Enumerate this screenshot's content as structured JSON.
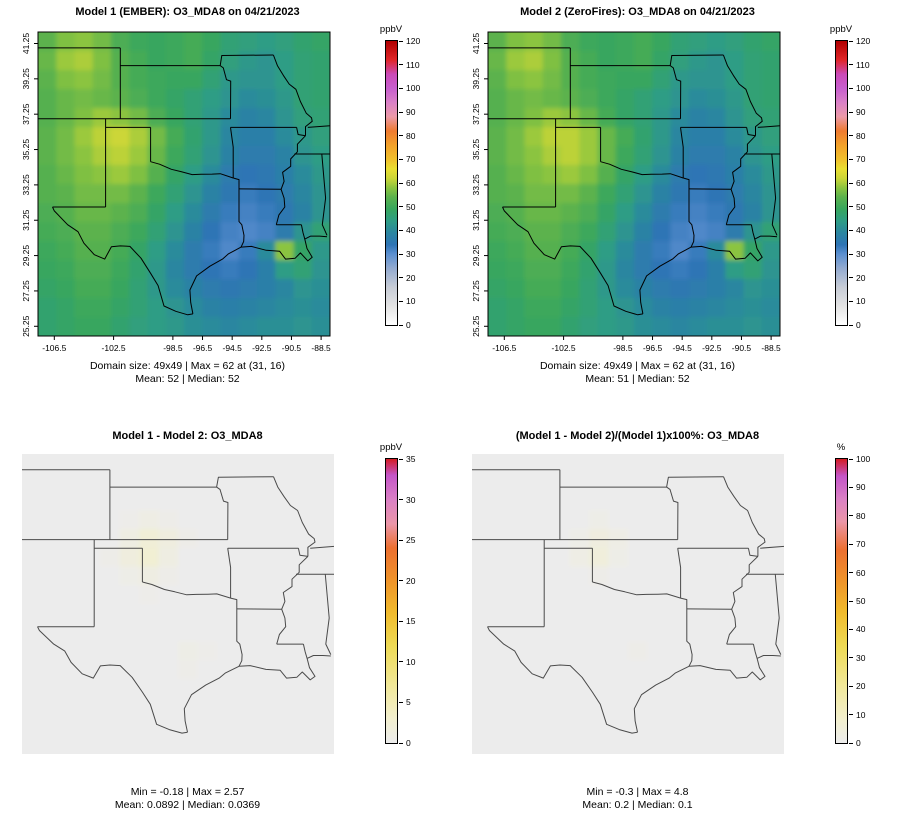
{
  "chart_data": [
    {
      "type": "heatmap",
      "title": "Model 1 (EMBER): O3_MDA8 on 04/21/2023",
      "stats1": "Domain size: 49x49 | Max = 62 at (31, 16)",
      "stats2": "Mean: 52 |  Median: 52",
      "lon_range": [
        -107.6,
        -87.9
      ],
      "lat_range": [
        24.7,
        41.9
      ],
      "x_ticks": [
        -106.5,
        -102.5,
        -98.5,
        -96.5,
        -94.5,
        -92.5,
        -90.5,
        -88.5
      ],
      "y_ticks": [
        25.25,
        27.25,
        29.25,
        31.25,
        33.25,
        35.25,
        37.25,
        39.25,
        41.25
      ],
      "colorbar": {
        "unit": "ppbV",
        "min": 0,
        "max": 120,
        "ticks": [
          0,
          10,
          20,
          30,
          40,
          50,
          60,
          70,
          80,
          90,
          100,
          110,
          120
        ],
        "stops": [
          [
            0,
            "#ffffff"
          ],
          [
            8,
            "#e3e3e3"
          ],
          [
            16,
            "#c7ccd6"
          ],
          [
            24,
            "#93aad0"
          ],
          [
            30,
            "#5b8fd0"
          ],
          [
            34,
            "#2e74b5"
          ],
          [
            39,
            "#2b86a0"
          ],
          [
            44,
            "#2e9d85"
          ],
          [
            49,
            "#37a65e"
          ],
          [
            54,
            "#5bb24d"
          ],
          [
            58,
            "#8bc43f"
          ],
          [
            62,
            "#ccd637"
          ],
          [
            66,
            "#e9df32"
          ],
          [
            70,
            "#f0c02c"
          ],
          [
            76,
            "#f2a12a"
          ],
          [
            82,
            "#ee7b30"
          ],
          [
            88,
            "#ec9aa8"
          ],
          [
            94,
            "#da81c7"
          ],
          [
            100,
            "#c75fce"
          ],
          [
            106,
            "#cb4ab8"
          ],
          [
            112,
            "#e02629"
          ],
          [
            120,
            "#b00000"
          ]
        ]
      },
      "values": [
        [
          54,
          57,
          58,
          56,
          52,
          50,
          49,
          50,
          51,
          49,
          46,
          45,
          44,
          45,
          47,
          48
        ],
        [
          55,
          59,
          60,
          57,
          53,
          51,
          49,
          50,
          51,
          48,
          45,
          43,
          42,
          44,
          46,
          47
        ],
        [
          54,
          57,
          58,
          56,
          53,
          51,
          50,
          49,
          49,
          46,
          43,
          42,
          42,
          44,
          46,
          47
        ],
        [
          53,
          55,
          56,
          55,
          54,
          52,
          50,
          48,
          46,
          44,
          42,
          40,
          41,
          43,
          46,
          47
        ],
        [
          53,
          55,
          57,
          59,
          58,
          56,
          52,
          49,
          46,
          43,
          40,
          38,
          39,
          42,
          45,
          46
        ],
        [
          54,
          56,
          59,
          61,
          62,
          60,
          56,
          51,
          47,
          43,
          39,
          37,
          37,
          40,
          43,
          45
        ],
        [
          54,
          56,
          58,
          60,
          61,
          59,
          55,
          50,
          46,
          42,
          38,
          36,
          36,
          38,
          42,
          44
        ],
        [
          53,
          55,
          57,
          58,
          59,
          57,
          53,
          48,
          44,
          40,
          36,
          34,
          35,
          37,
          40,
          43
        ],
        [
          53,
          54,
          56,
          56,
          56,
          54,
          50,
          46,
          42,
          38,
          35,
          33,
          34,
          36,
          39,
          42
        ],
        [
          52,
          53,
          55,
          55,
          54,
          52,
          48,
          44,
          40,
          36,
          33,
          32,
          33,
          35,
          38,
          42
        ],
        [
          51,
          52,
          54,
          54,
          52,
          50,
          46,
          42,
          38,
          34,
          32,
          31,
          32,
          36,
          42,
          46
        ],
        [
          50,
          51,
          53,
          53,
          51,
          48,
          44,
          40,
          36,
          33,
          31,
          33,
          40,
          58,
          48,
          43
        ],
        [
          49,
          50,
          52,
          52,
          50,
          47,
          43,
          39,
          36,
          34,
          33,
          34,
          37,
          44,
          46,
          42
        ],
        [
          48,
          49,
          51,
          51,
          49,
          46,
          43,
          40,
          38,
          36,
          35,
          36,
          37,
          39,
          42,
          41
        ],
        [
          47,
          48,
          50,
          50,
          48,
          46,
          44,
          42,
          40,
          38,
          37,
          38,
          39,
          40,
          41,
          40
        ],
        [
          47,
          48,
          49,
          49,
          47,
          45,
          44,
          43,
          41,
          40,
          39,
          40,
          41,
          41,
          42,
          41
        ]
      ]
    },
    {
      "type": "heatmap",
      "title": "Model 2 (ZeroFires): O3_MDA8 on 04/21/2023",
      "stats1": "Domain size: 49x49 | Max = 62 at (31, 16)",
      "stats2": "Mean: 51 |  Median: 52",
      "lon_range": [
        -107.6,
        -87.9
      ],
      "lat_range": [
        24.7,
        41.9
      ],
      "x_ticks": [
        -106.5,
        -102.5,
        -98.5,
        -96.5,
        -94.5,
        -92.5,
        -90.5,
        -88.5
      ],
      "y_ticks": [
        25.25,
        27.25,
        29.25,
        31.25,
        33.25,
        35.25,
        37.25,
        39.25,
        41.25
      ],
      "colorbar": {
        "unit": "ppbV",
        "min": 0,
        "max": 120,
        "ticks": [
          0,
          10,
          20,
          30,
          40,
          50,
          60,
          70,
          80,
          90,
          100,
          110,
          120
        ],
        "stops": [
          [
            0,
            "#ffffff"
          ],
          [
            8,
            "#e3e3e3"
          ],
          [
            16,
            "#c7ccd6"
          ],
          [
            24,
            "#93aad0"
          ],
          [
            30,
            "#5b8fd0"
          ],
          [
            34,
            "#2e74b5"
          ],
          [
            39,
            "#2b86a0"
          ],
          [
            44,
            "#2e9d85"
          ],
          [
            49,
            "#37a65e"
          ],
          [
            54,
            "#5bb24d"
          ],
          [
            58,
            "#8bc43f"
          ],
          [
            62,
            "#ccd637"
          ],
          [
            66,
            "#e9df32"
          ],
          [
            70,
            "#f0c02c"
          ],
          [
            76,
            "#f2a12a"
          ],
          [
            82,
            "#ee7b30"
          ],
          [
            88,
            "#ec9aa8"
          ],
          [
            94,
            "#da81c7"
          ],
          [
            100,
            "#c75fce"
          ],
          [
            106,
            "#cb4ab8"
          ],
          [
            112,
            "#e02629"
          ],
          [
            120,
            "#b00000"
          ]
        ]
      },
      "values": [
        [
          54,
          57,
          58,
          56,
          52,
          50,
          49,
          50,
          51,
          49,
          46,
          45,
          44,
          45,
          47,
          48
        ],
        [
          55,
          59,
          60,
          57,
          53,
          51,
          49,
          50,
          51,
          48,
          45,
          43,
          42,
          44,
          46,
          47
        ],
        [
          54,
          57,
          58,
          56,
          53,
          51,
          50,
          49,
          49,
          46,
          43,
          42,
          42,
          44,
          46,
          47
        ],
        [
          53,
          55,
          56,
          55,
          54,
          52,
          50,
          48,
          46,
          44,
          42,
          40,
          41,
          43,
          46,
          47
        ],
        [
          53,
          55,
          57,
          59,
          58,
          55,
          51,
          48,
          46,
          43,
          40,
          38,
          39,
          42,
          45,
          46
        ],
        [
          54,
          56,
          59,
          61,
          61,
          59,
          55,
          51,
          47,
          43,
          39,
          37,
          37,
          40,
          43,
          45
        ],
        [
          54,
          56,
          58,
          60,
          61,
          59,
          55,
          50,
          46,
          42,
          38,
          36,
          36,
          38,
          42,
          44
        ],
        [
          53,
          55,
          57,
          58,
          59,
          57,
          53,
          48,
          44,
          40,
          36,
          34,
          35,
          37,
          40,
          43
        ],
        [
          53,
          54,
          56,
          56,
          56,
          54,
          50,
          46,
          42,
          38,
          35,
          33,
          34,
          36,
          39,
          42
        ],
        [
          52,
          53,
          55,
          55,
          54,
          52,
          48,
          44,
          40,
          36,
          33,
          32,
          33,
          35,
          38,
          42
        ],
        [
          51,
          52,
          54,
          54,
          52,
          50,
          46,
          42,
          38,
          34,
          32,
          31,
          32,
          36,
          42,
          46
        ],
        [
          50,
          51,
          53,
          53,
          51,
          48,
          44,
          40,
          36,
          33,
          31,
          33,
          40,
          58,
          48,
          43
        ],
        [
          49,
          50,
          52,
          52,
          50,
          47,
          43,
          39,
          36,
          34,
          33,
          34,
          37,
          44,
          46,
          42
        ],
        [
          48,
          49,
          51,
          51,
          49,
          46,
          43,
          40,
          38,
          36,
          35,
          36,
          37,
          39,
          42,
          41
        ],
        [
          47,
          48,
          50,
          50,
          48,
          46,
          44,
          42,
          40,
          38,
          37,
          38,
          39,
          40,
          41,
          40
        ],
        [
          47,
          48,
          49,
          49,
          47,
          45,
          44,
          43,
          41,
          40,
          39,
          40,
          41,
          41,
          42,
          41
        ]
      ]
    },
    {
      "type": "heatmap",
      "title": "Model 1 - Model 2: O3_MDA8",
      "stats1": "Min = -0.18 | Max = 2.57",
      "stats2": "Mean: 0.0892 |  Median: 0.0369",
      "lon_range": [
        -107.6,
        -87.9
      ],
      "lat_range": [
        24.7,
        41.9
      ],
      "colorbar": {
        "unit": "ppbV",
        "min": 0,
        "max": 35,
        "ticks": [
          0,
          5,
          10,
          15,
          20,
          25,
          30,
          35
        ],
        "stops": [
          [
            0,
            "#ececec"
          ],
          [
            3,
            "#f2efcf"
          ],
          [
            7,
            "#f1e89a"
          ],
          [
            12,
            "#eeda55"
          ],
          [
            16,
            "#f0bb2d"
          ],
          [
            20,
            "#ef942a"
          ],
          [
            24,
            "#ec7030"
          ],
          [
            27,
            "#eb96a8"
          ],
          [
            30,
            "#da80c5"
          ],
          [
            33,
            "#c455c8"
          ],
          [
            35,
            "#d31c24"
          ]
        ]
      },
      "grid_size": 16,
      "values_base": 0.05,
      "values_bumps": [
        [
          3,
          5,
          0.3
        ],
        [
          3,
          6,
          0.8
        ],
        [
          3,
          7,
          0.4
        ],
        [
          4,
          5,
          1.0
        ],
        [
          4,
          6,
          2.2
        ],
        [
          4,
          7,
          1.3
        ],
        [
          4,
          8,
          0.4
        ],
        [
          5,
          4,
          0.4
        ],
        [
          5,
          5,
          1.4
        ],
        [
          5,
          6,
          2.57
        ],
        [
          5,
          7,
          1.0
        ],
        [
          6,
          5,
          0.5
        ],
        [
          6,
          6,
          1.0
        ],
        [
          6,
          7,
          0.4
        ],
        [
          7,
          6,
          0.3
        ],
        [
          10,
          8,
          0.6
        ],
        [
          10,
          9,
          0.3
        ],
        [
          11,
          8,
          0.4
        ]
      ]
    },
    {
      "type": "heatmap",
      "title": "(Model 1 - Model 2)/(Model 1)x100%: O3_MDA8",
      "stats1": "Min = -0.3 | Max = 4.8",
      "stats2": "Mean: 0.2 |  Median: 0.1",
      "lon_range": [
        -107.6,
        -87.9
      ],
      "lat_range": [
        24.7,
        41.9
      ],
      "colorbar": {
        "unit": "%",
        "min": 0,
        "max": 100,
        "ticks": [
          0,
          10,
          20,
          30,
          40,
          50,
          60,
          70,
          80,
          90,
          100
        ],
        "stops": [
          [
            0,
            "#ececec"
          ],
          [
            8,
            "#f2efcf"
          ],
          [
            20,
            "#f1e89a"
          ],
          [
            34,
            "#eeda55"
          ],
          [
            46,
            "#f0bb2d"
          ],
          [
            57,
            "#ef942a"
          ],
          [
            68,
            "#ec7030"
          ],
          [
            78,
            "#eb96a8"
          ],
          [
            86,
            "#da80c5"
          ],
          [
            94,
            "#c455c8"
          ],
          [
            100,
            "#d31c24"
          ]
        ]
      },
      "grid_size": 16,
      "values_base": 0.1,
      "values_bumps": [
        [
          3,
          6,
          1.5
        ],
        [
          4,
          5,
          1.5
        ],
        [
          4,
          6,
          3.5
        ],
        [
          4,
          7,
          2.0
        ],
        [
          5,
          5,
          2.0
        ],
        [
          5,
          6,
          4.8
        ],
        [
          5,
          7,
          1.5
        ],
        [
          6,
          6,
          1.2
        ],
        [
          10,
          8,
          1.0
        ]
      ]
    }
  ]
}
